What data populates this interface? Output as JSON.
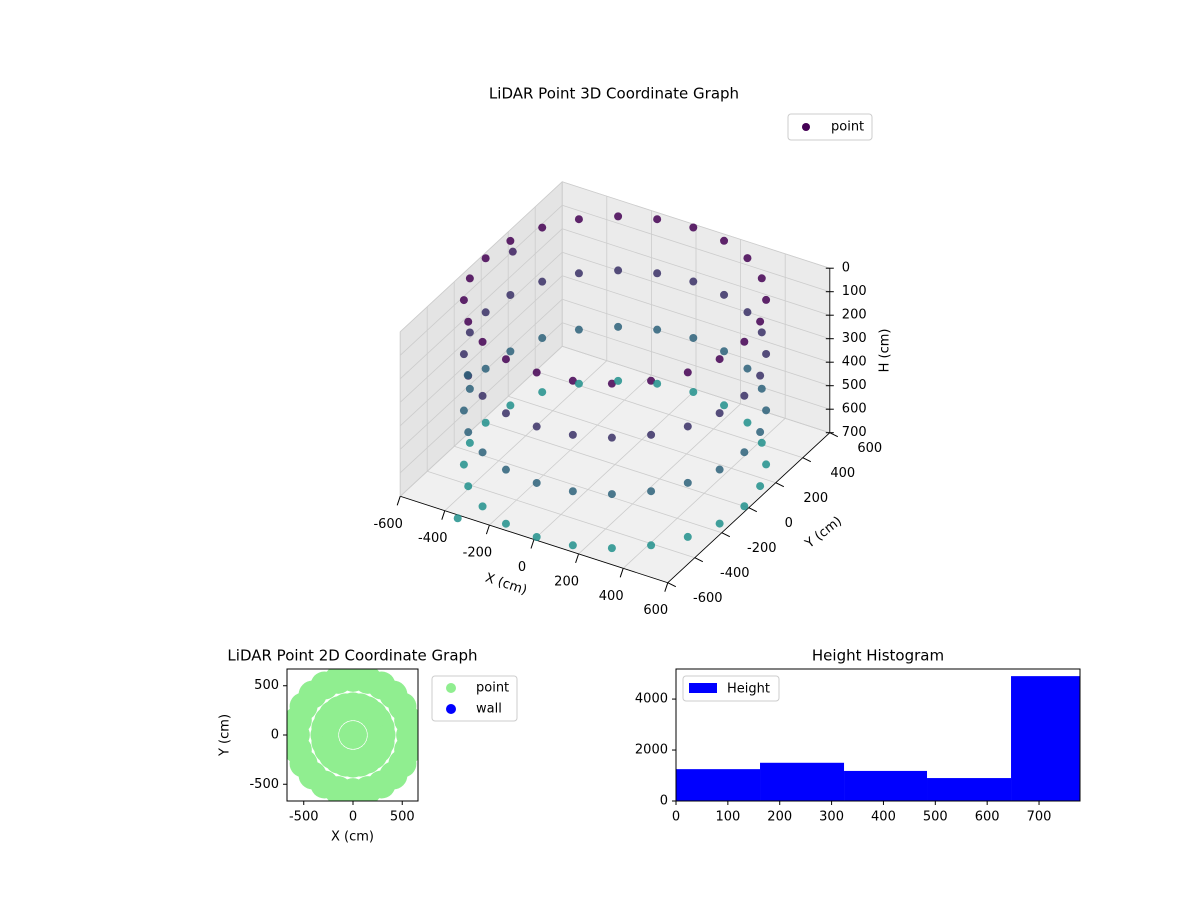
{
  "chart_data": [
    {
      "type": "scatter3d",
      "title": "LiDAR Point 3D Coordinate Graph",
      "xlabel": "X (cm)",
      "ylabel": "Y (cm)",
      "zlabel": "H (cm)",
      "xlim": [
        -600,
        600
      ],
      "ylim": [
        -600,
        600
      ],
      "zlim": [
        0,
        700
      ],
      "z_inverted": true,
      "xticks": [
        -600,
        -400,
        -200,
        0,
        200,
        400,
        600
      ],
      "yticks": [
        -600,
        -400,
        -200,
        0,
        200,
        400,
        600
      ],
      "zticks": [
        0,
        100,
        200,
        300,
        400,
        500,
        600,
        700
      ],
      "cmap": [
        "#440154",
        "#21918c"
      ],
      "grid": true,
      "legend": "upper right",
      "series": [
        {
          "name": "point",
          "x": [
            580,
            560,
            502,
            410,
            290,
            150,
            0,
            -150,
            -290,
            -410,
            -502,
            -560,
            -580,
            -560,
            -502,
            -410,
            -290,
            -150,
            0,
            150,
            290,
            410,
            502,
            560,
            580,
            560,
            502,
            410,
            290,
            150,
            0,
            -150,
            -290,
            -410,
            -502,
            -560,
            -580,
            -560,
            -502,
            -410,
            -290,
            -150,
            0,
            150,
            290,
            410,
            502,
            560,
            580,
            560,
            502,
            410,
            290,
            150,
            0,
            -150,
            -290,
            -410,
            -502,
            -560,
            -580,
            -560,
            -502,
            -410,
            -290,
            -150,
            0,
            150,
            290,
            410,
            502,
            560,
            580,
            560,
            502,
            410,
            290,
            150,
            0,
            -150,
            -290,
            -410,
            -502,
            -560,
            -580,
            -560,
            -502,
            -410,
            -290,
            -150,
            0,
            150,
            290,
            410,
            502,
            560,
            -640,
            -600,
            -330
          ],
          "y": [
            0,
            150,
            290,
            410,
            502,
            560,
            580,
            560,
            502,
            410,
            290,
            150,
            0,
            -150,
            -290,
            -410,
            -502,
            -560,
            -580,
            -560,
            -502,
            -410,
            -290,
            -150,
            0,
            150,
            290,
            410,
            502,
            560,
            580,
            560,
            502,
            410,
            290,
            150,
            0,
            -150,
            -290,
            -410,
            -502,
            -560,
            -580,
            -560,
            -502,
            -410,
            -290,
            -150,
            0,
            150,
            290,
            410,
            502,
            560,
            580,
            560,
            502,
            410,
            290,
            150,
            0,
            -150,
            -290,
            -410,
            -502,
            -560,
            -580,
            -560,
            -502,
            -410,
            -290,
            -150,
            0,
            150,
            290,
            410,
            502,
            560,
            580,
            560,
            502,
            410,
            290,
            150,
            0,
            -150,
            -290,
            -410,
            -502,
            -560,
            -580,
            -560,
            -502,
            -410,
            -290,
            -150,
            300,
            -100,
            -620
          ],
          "h": [
            0,
            0,
            0,
            0,
            0,
            0,
            0,
            0,
            0,
            0,
            0,
            0,
            0,
            0,
            0,
            0,
            0,
            0,
            0,
            0,
            0,
            0,
            0,
            0,
            230,
            230,
            230,
            230,
            230,
            230,
            230,
            230,
            230,
            230,
            230,
            230,
            230,
            230,
            230,
            230,
            230,
            230,
            230,
            230,
            230,
            230,
            230,
            230,
            470,
            470,
            470,
            470,
            470,
            470,
            470,
            470,
            470,
            470,
            470,
            470,
            470,
            470,
            470,
            470,
            470,
            470,
            470,
            470,
            470,
            470,
            470,
            470,
            700,
            700,
            700,
            700,
            700,
            700,
            700,
            700,
            700,
            700,
            700,
            700,
            700,
            700,
            700,
            700,
            700,
            700,
            700,
            700,
            700,
            700,
            700,
            700,
            150,
            450,
            700
          ]
        }
      ]
    },
    {
      "type": "scatter",
      "title": "LiDAR Point 2D Coordinate Graph",
      "xlabel": "X (cm)",
      "ylabel": "Y (cm)",
      "xlim": [
        -670,
        660
      ],
      "ylim": [
        -670,
        670
      ],
      "xticks": [
        -500,
        0,
        500
      ],
      "yticks": [
        -500,
        0,
        500
      ],
      "legend": "outside right",
      "series": [
        {
          "name": "point",
          "color": "#90ee90",
          "x": [
            580,
            560,
            502,
            410,
            290,
            150,
            0,
            -150,
            -290,
            -410,
            -502,
            -560,
            -580,
            -560,
            -502,
            -410,
            -290,
            -150,
            0,
            150,
            290,
            410,
            502,
            560,
            290,
            280,
            251,
            205,
            145,
            75,
            0,
            -75,
            -145,
            -205,
            -251,
            -280,
            -290,
            -280,
            -251,
            -205,
            -145,
            -75,
            0,
            75,
            145,
            205,
            251,
            280,
            0
          ],
          "y": [
            0,
            150,
            290,
            410,
            502,
            560,
            580,
            560,
            502,
            410,
            290,
            150,
            0,
            -150,
            -290,
            -410,
            -502,
            -560,
            -580,
            -560,
            -502,
            -410,
            -290,
            -150,
            0,
            75,
            145,
            205,
            251,
            280,
            290,
            280,
            251,
            205,
            145,
            75,
            0,
            -75,
            -145,
            -205,
            -251,
            -280,
            -290,
            -280,
            -251,
            -205,
            -145,
            -75,
            0
          ]
        },
        {
          "name": "wall",
          "color": "#0000ff",
          "x": [],
          "y": []
        }
      ]
    },
    {
      "type": "histogram",
      "title": "Height Histogram",
      "bins": [
        0,
        162,
        324,
        484,
        646,
        779
      ],
      "values": [
        1250,
        1500,
        1180,
        900,
        4900
      ],
      "xlim": [
        0,
        779
      ],
      "ylim": [
        0,
        5180
      ],
      "xticks": [
        0,
        100,
        200,
        300,
        400,
        500,
        600,
        700
      ],
      "yticks": [
        0,
        2000,
        4000
      ],
      "series_name": "Height",
      "color": "#0000ff",
      "legend": "upper left"
    }
  ]
}
